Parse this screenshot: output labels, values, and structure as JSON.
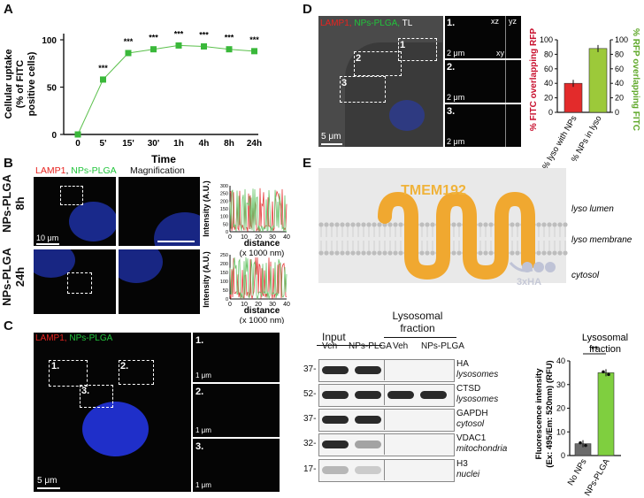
{
  "panel_labels": {
    "a": "A",
    "b": "B",
    "c": "C",
    "d": "D",
    "e": "E"
  },
  "panelA": {
    "ylabel_lines": [
      "Cellular uptake",
      "(% of FITC",
      "positive cells)"
    ],
    "xlabel": "Time",
    "yticks": [
      "0",
      "50",
      "100"
    ],
    "significance": "***"
  },
  "chart_data": [
    {
      "type": "line",
      "categories": [
        "0",
        "5'",
        "15'",
        "30'",
        "1h",
        "4h",
        "8h",
        "24h"
      ],
      "values": [
        0,
        58,
        86,
        90,
        94,
        93,
        90,
        88
      ],
      "errors": [
        1,
        2,
        2,
        2,
        2,
        2,
        2,
        3
      ],
      "significance": [
        "",
        "***",
        "***",
        "***",
        "***",
        "***",
        "***",
        "***"
      ],
      "ylim": [
        0,
        100
      ],
      "xlabel": "Time",
      "ylabel": "Cellular uptake (% of FITC positive cells)"
    },
    {
      "type": "bar",
      "categories": [
        "% lyso with NPs",
        "% NPs in lyso"
      ],
      "values": [
        40,
        88
      ],
      "ylim": [
        0,
        100
      ],
      "ylabel_left": "% FITC overlapping RFP",
      "ylabel_right": "% RFP overlapping FITC",
      "colors": [
        "#e32b2b",
        "#9cc93a"
      ]
    },
    {
      "type": "bar",
      "title": "Lysosomal fraction",
      "categories": [
        "No NPs",
        "NPs-PLGA"
      ],
      "values": [
        5,
        35
      ],
      "ylim": [
        0,
        40
      ],
      "ylabel": "Fluorescence intensity (Ex: 495/Em: 520nm) (RFU)",
      "significance": "**",
      "colors": [
        "#6b6b6b",
        "#7fcf3f"
      ]
    }
  ],
  "panelB": {
    "legend_lamp1": "LAMP1",
    "legend_sep": ", ",
    "legend_nps": "NPs-PLGA",
    "magnification": "Magnification",
    "row1": {
      "label_top": "NPs-PLGA",
      "label_bottom": "8h"
    },
    "row2": {
      "label_top": "NPs-PLGA",
      "label_bottom": "24h"
    },
    "scale": "10 μm",
    "plot_ylabel": "Intensity (A.U.)",
    "plot_xlabel": "distance",
    "plot_xunit": "(x 1000 nm)",
    "plot_xticks": [
      "0",
      "10",
      "20",
      "30",
      "40"
    ],
    "plot1_yticks": [
      "0",
      "50",
      "100",
      "150",
      "200",
      "250",
      "300"
    ],
    "plot2_yticks": [
      "0",
      "50",
      "100",
      "150",
      "200",
      "250"
    ]
  },
  "panelC": {
    "legend_lamp1": "LAMP1,",
    "legend_nps": "NPs-PLGA",
    "boxes": [
      "1.",
      "2.",
      "3."
    ],
    "insets": [
      "1.",
      "2.",
      "3."
    ],
    "scale": "5 μm",
    "inset_scale": "1 μm"
  },
  "panelD": {
    "legend_lamp1": "LAMP1,",
    "legend_nps": "NPs-PLGA,",
    "legend_tl": "TL",
    "boxes": [
      "1",
      "2",
      "3"
    ],
    "insets": [
      "1.",
      "2.",
      "3."
    ],
    "scale": "5 μm",
    "inset_scale": "2 μm",
    "axis_xz": "xz",
    "axis_yz": "yz",
    "axis_xy": "xy",
    "yticks": [
      "0",
      "20",
      "40",
      "60",
      "80",
      "100"
    ]
  },
  "panelE": {
    "protein": "TMEM192",
    "tag": "3xHA",
    "lumen": "lyso lumen",
    "membrane": "lyso membrane",
    "cytosol": "cytosol",
    "input": "Input",
    "lysosomal_fraction_lines": [
      "Lysosomal",
      "fraction"
    ],
    "lanes": [
      "Veh",
      "NPs-PLGA",
      "Veh",
      "NPs-PLGA"
    ],
    "blots": [
      {
        "mw": "37-",
        "protein": "HA",
        "location": "lysosomes"
      },
      {
        "mw": "52-",
        "protein": "CTSD",
        "location": "lysosomes"
      },
      {
        "mw": "37-",
        "protein": "GAPDH",
        "location": "cytosol"
      },
      {
        "mw": "32-",
        "protein": "VDAC1",
        "location": "mitochondria"
      },
      {
        "mw": "17-",
        "protein": "H3",
        "location": "nuclei"
      }
    ],
    "bar_yticks": [
      "0",
      "10",
      "20",
      "30",
      "40"
    ],
    "bar_title_lines": [
      "Lysosomal",
      "fraction"
    ],
    "bar_ylabel_lines": [
      "Fluorescence intensity",
      "(Ex: 495/Em: 520nm) (RFU)"
    ]
  }
}
